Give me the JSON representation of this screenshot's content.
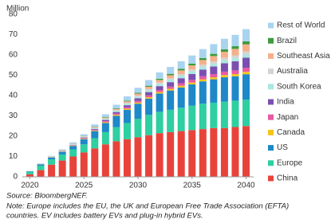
{
  "chart_data": {
    "type": "stacked_bar",
    "y_label": "Million",
    "x": [
      2020,
      2021,
      2022,
      2023,
      2024,
      2025,
      2026,
      2027,
      2028,
      2029,
      2030,
      2031,
      2032,
      2033,
      2034,
      2035,
      2036,
      2037,
      2038,
      2039,
      2040
    ],
    "xlim": [
      2019.3,
      2040.7
    ],
    "xticks": [
      2020,
      2025,
      2030,
      2035,
      2040
    ],
    "ylim": [
      0,
      80
    ],
    "yticks": [
      0,
      10,
      20,
      30,
      40,
      50,
      60,
      70,
      80
    ],
    "grid": false,
    "legend": "right",
    "series": [
      {
        "name": "China",
        "color": "#e8433a",
        "values": [
          1.2,
          3.3,
          6,
          8,
          10,
          12,
          14,
          16,
          17.5,
          18.5,
          19.5,
          20.5,
          21.5,
          22,
          22.5,
          23,
          23.5,
          24,
          24,
          24.5,
          25
        ]
      },
      {
        "name": "Europe",
        "color": "#2ecfa0",
        "values": [
          1.2,
          2.2,
          2.6,
          3,
          3.5,
          4,
          5,
          6,
          7,
          8,
          9,
          10,
          10.5,
          11,
          11.5,
          12,
          12.5,
          12.5,
          13,
          13,
          13
        ]
      },
      {
        "name": "US",
        "color": "#1e88c8",
        "values": [
          0.3,
          0.6,
          0.9,
          1.3,
          1.7,
          2.5,
          3.5,
          4.5,
          5.5,
          6.5,
          7.5,
          8,
          9,
          9.5,
          10,
          10.5,
          11,
          11.5,
          12,
          12,
          12.5
        ]
      },
      {
        "name": "Canada",
        "color": "#f5c518",
        "values": [
          0.05,
          0.1,
          0.1,
          0.15,
          0.2,
          0.25,
          0.3,
          0.4,
          0.5,
          0.55,
          0.6,
          0.7,
          0.75,
          0.8,
          0.85,
          0.9,
          1,
          1,
          1.1,
          1.1,
          1.2
        ]
      },
      {
        "name": "Japan",
        "color": "#e75aa5",
        "values": [
          0.05,
          0.05,
          0.1,
          0.15,
          0.2,
          0.3,
          0.4,
          0.5,
          0.6,
          0.7,
          0.8,
          0.9,
          1,
          1.1,
          1.2,
          1.3,
          1.5,
          1.6,
          1.7,
          1.8,
          2
        ]
      },
      {
        "name": "India",
        "color": "#7b4fb0",
        "values": [
          0,
          0,
          0.05,
          0.1,
          0.15,
          0.3,
          0.4,
          0.6,
          0.8,
          1,
          1.3,
          1.6,
          1.9,
          2.2,
          2.5,
          2.9,
          3.3,
          3.7,
          4.1,
          4.5,
          5
        ]
      },
      {
        "name": "South Korea",
        "color": "#a8e8e0",
        "values": [
          0.05,
          0.1,
          0.15,
          0.2,
          0.25,
          0.3,
          0.4,
          0.5,
          0.6,
          0.7,
          0.8,
          0.9,
          1,
          1.05,
          1.1,
          1.2,
          1.25,
          1.3,
          1.4,
          1.45,
          1.5
        ]
      },
      {
        "name": "Australia",
        "color": "#d4d4d4",
        "values": [
          0,
          0.02,
          0.05,
          0.1,
          0.15,
          0.2,
          0.25,
          0.3,
          0.4,
          0.5,
          0.55,
          0.65,
          0.75,
          0.85,
          0.95,
          1.05,
          1.15,
          1.25,
          1.35,
          1.45,
          1.5
        ]
      },
      {
        "name": "Southeast Asia",
        "color": "#f5b08a",
        "values": [
          0,
          0.02,
          0.05,
          0.1,
          0.15,
          0.2,
          0.3,
          0.4,
          0.5,
          0.7,
          0.9,
          1.1,
          1.3,
          1.5,
          1.8,
          2,
          2.3,
          2.6,
          2.9,
          3.2,
          3.5
        ]
      },
      {
        "name": "Brazil",
        "color": "#3d9b3d",
        "values": [
          0,
          0.02,
          0.03,
          0.05,
          0.08,
          0.1,
          0.15,
          0.2,
          0.3,
          0.35,
          0.4,
          0.5,
          0.6,
          0.7,
          0.8,
          0.9,
          1,
          1.1,
          1.2,
          1.3,
          1.5
        ]
      },
      {
        "name": "Rest of World",
        "color": "#a8d4f0",
        "values": [
          0.1,
          0.2,
          0.3,
          0.4,
          0.6,
          0.8,
          1.1,
          1.4,
          1.8,
          2.1,
          2.5,
          2.8,
          3.1,
          3.4,
          3.7,
          4,
          4.4,
          4.8,
          5.2,
          5.6,
          6
        ]
      }
    ],
    "notes": [
      "Source: BloombergNEF.",
      "Note: Europe includes the EU, the UK and European Free Trade Association (EFTA)",
      "countries. EV includes battery EVs and plug-in hybrid EVs."
    ]
  }
}
